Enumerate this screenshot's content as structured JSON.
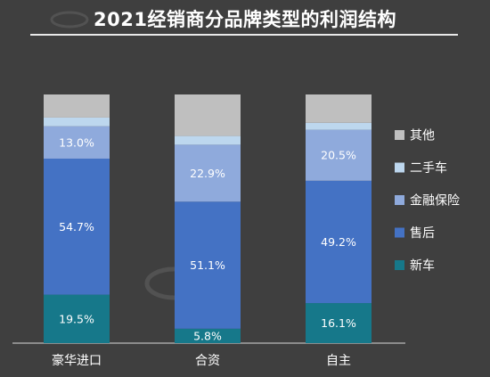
{
  "title": "2021经销商分品牌类型的利润结构",
  "chart_data": {
    "type": "bar",
    "stacked": true,
    "categories": [
      "豪华进口",
      "合资",
      "自主"
    ],
    "series": [
      {
        "name": "新车",
        "values": [
          19.5,
          5.8,
          16.1
        ],
        "color": "#16788a"
      },
      {
        "name": "售后",
        "values": [
          54.7,
          51.1,
          49.2
        ],
        "color": "#4472c4"
      },
      {
        "name": "金融保险",
        "values": [
          13.0,
          22.9,
          20.5
        ],
        "color": "#8faadc"
      },
      {
        "name": "二手车",
        "values": [
          3.5,
          3.5,
          2.8
        ],
        "color": "#bdd7ee"
      },
      {
        "name": "其他",
        "values": [
          9.3,
          16.7,
          11.4
        ],
        "color": "#bfbfbf"
      }
    ],
    "labeled_series": [
      "新车",
      "售后",
      "金融保险"
    ],
    "ylim": [
      0,
      100
    ],
    "grid": false,
    "legend": "right"
  }
}
